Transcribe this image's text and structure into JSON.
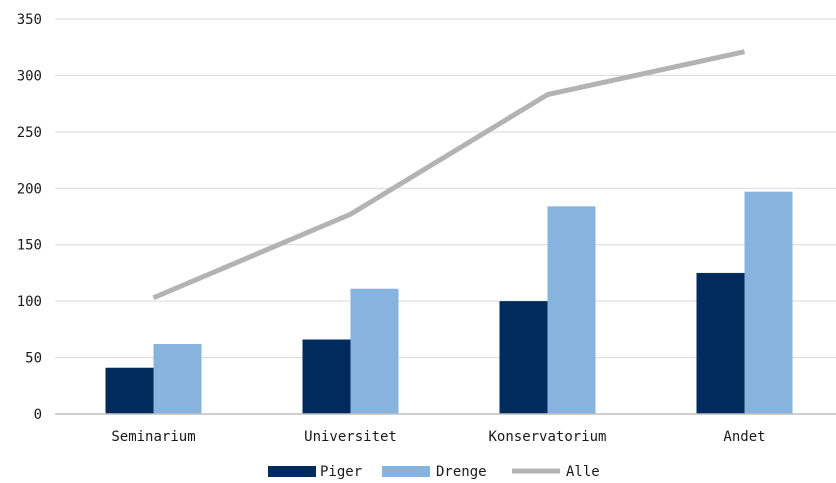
{
  "chart_data": {
    "type": "bar",
    "categories": [
      "Seminarium",
      "Universitet",
      "Konservatorium",
      "Andet"
    ],
    "series": [
      {
        "name": "Piger",
        "type": "bar",
        "color": "#002b5c",
        "values": [
          41,
          66,
          100,
          125
        ]
      },
      {
        "name": "Drenge",
        "type": "bar",
        "color": "#86b4de",
        "values": [
          62,
          111,
          184,
          197
        ]
      },
      {
        "name": "Alle",
        "type": "line",
        "color": "#b3b3b3",
        "values": [
          103,
          177,
          283,
          321
        ]
      }
    ],
    "ylim": [
      0,
      350
    ],
    "yticks": [
      "0",
      "50",
      "100",
      "150",
      "200",
      "250",
      "300",
      "350"
    ],
    "grid": true,
    "legend_position": "bottom"
  }
}
